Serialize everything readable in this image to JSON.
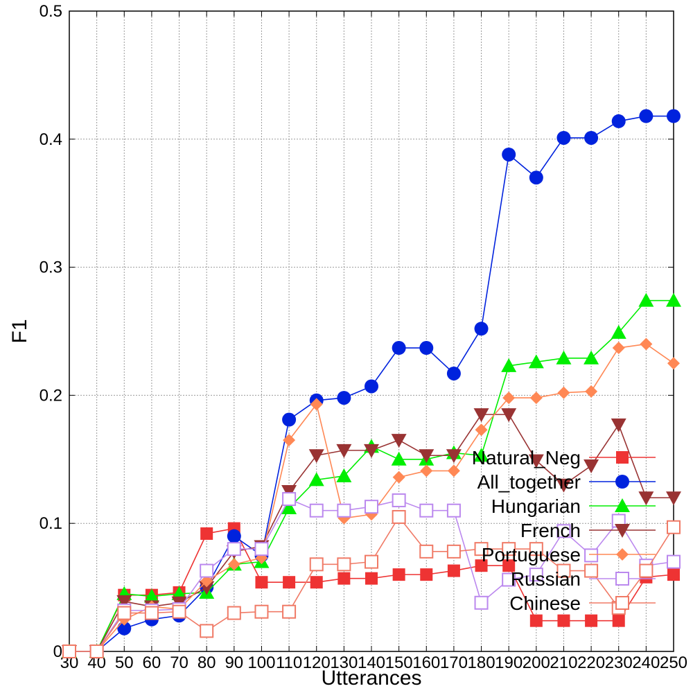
{
  "chart_data": {
    "type": "line",
    "title": "",
    "xlabel": "Utterances",
    "ylabel": "F1",
    "x": [
      30,
      40,
      50,
      60,
      70,
      80,
      90,
      100,
      110,
      120,
      130,
      140,
      150,
      160,
      170,
      180,
      190,
      200,
      210,
      220,
      230,
      240,
      250
    ],
    "xlim": [
      30,
      250
    ],
    "ylim": [
      0,
      0.5
    ],
    "yticks": [
      0,
      0.1,
      0.2,
      0.3,
      0.4,
      0.5
    ],
    "ytick_labels": [
      "0",
      "0.1",
      "0.2",
      "0.3",
      "0.4",
      "0.5"
    ],
    "grid": true,
    "legend_position": "bottom-right",
    "series": [
      {
        "name": "Natural_Neg",
        "color": "#ee3333",
        "marker": "square-filled",
        "values": [
          0,
          0,
          0.044,
          0.044,
          0.046,
          0.092,
          0.096,
          0.054,
          0.054,
          0.054,
          0.057,
          0.057,
          0.06,
          0.06,
          0.063,
          0.067,
          0.067,
          0.024,
          0.024,
          0.024,
          0.024,
          0.058,
          0.06
        ]
      },
      {
        "name": "All_together",
        "color": "#0022dd",
        "marker": "circle-filled",
        "values": [
          0,
          0,
          0.018,
          0.025,
          0.028,
          0.05,
          0.09,
          0.075,
          0.181,
          0.196,
          0.198,
          0.207,
          0.237,
          0.237,
          0.217,
          0.252,
          0.388,
          0.37,
          0.401,
          0.401,
          0.414,
          0.418,
          0.418
        ]
      },
      {
        "name": "Hungarian",
        "color": "#00ee00",
        "marker": "triangle-up-filled",
        "values": [
          0,
          0,
          0.045,
          0.043,
          0.045,
          0.046,
          0.068,
          0.07,
          0.112,
          0.134,
          0.137,
          0.16,
          0.15,
          0.15,
          0.155,
          0.153,
          0.223,
          0.226,
          0.229,
          0.229,
          0.249,
          0.274,
          0.274
        ]
      },
      {
        "name": "French",
        "color": "#993333",
        "marker": "triangle-down-filled",
        "values": [
          0,
          0,
          0.039,
          0.035,
          0.038,
          0.05,
          0.078,
          0.082,
          0.125,
          0.153,
          0.157,
          0.157,
          0.165,
          0.153,
          0.153,
          0.185,
          0.185,
          0.149,
          0.13,
          0.145,
          0.177,
          0.12,
          0.12
        ]
      },
      {
        "name": "Portuguese",
        "color": "#ff8855",
        "marker": "diamond-filled",
        "values": [
          0,
          0,
          0.025,
          0.035,
          0.033,
          0.055,
          0.068,
          0.073,
          0.165,
          0.193,
          0.104,
          0.107,
          0.136,
          0.141,
          0.141,
          0.173,
          0.198,
          0.198,
          0.202,
          0.203,
          0.237,
          0.24,
          0.225
        ]
      },
      {
        "name": "Russian",
        "color": "#bb88ee",
        "marker": "square-open",
        "values": [
          0,
          0,
          0.032,
          0.032,
          0.033,
          0.063,
          0.08,
          0.08,
          0.119,
          0.11,
          0.11,
          0.113,
          0.118,
          0.11,
          0.11,
          0.038,
          0.056,
          0.06,
          0.094,
          0.075,
          0.102,
          0.067,
          0.07
        ]
      },
      {
        "name": "Chinese",
        "color": "#f07a66",
        "marker": "square-open",
        "values": [
          0,
          0,
          0.03,
          0.03,
          0.031,
          0.016,
          0.03,
          0.031,
          0.031,
          0.068,
          0.068,
          0.07,
          0.105,
          0.078,
          0.078,
          0.08,
          0.08,
          0.08,
          0.063,
          0.063,
          0.034,
          0.063,
          0.097
        ]
      }
    ]
  }
}
